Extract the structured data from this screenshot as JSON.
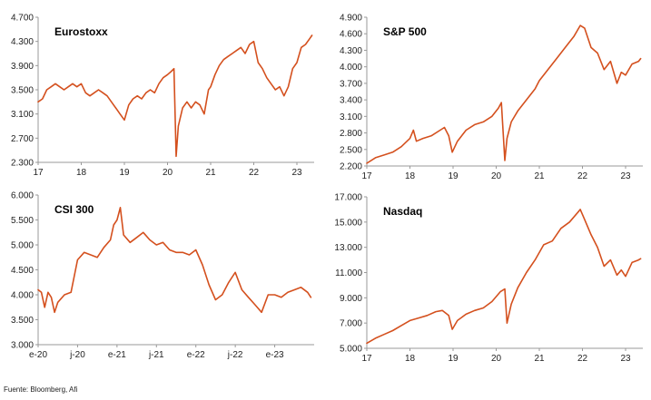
{
  "source_note": "Fuente: Bloomberg, Afi",
  "line_color": "#D4501E",
  "chart_data": [
    {
      "type": "line",
      "title": "Eurostoxx",
      "xlabel": "",
      "ylabel": "",
      "x_ticks": [
        17,
        18,
        19,
        20,
        21,
        22,
        23
      ],
      "x_tick_labels": [
        "17",
        "18",
        "19",
        "20",
        "21",
        "22",
        "23"
      ],
      "y_ticks": [
        2.3,
        2.7,
        3.1,
        3.5,
        3.9,
        4.3,
        4.7
      ],
      "y_tick_labels": [
        "2.300",
        "2.700",
        "3.100",
        "3.500",
        "3.900",
        "4.300",
        "4.700"
      ],
      "xlim": [
        17,
        23.4
      ],
      "ylim": [
        2.3,
        4.7
      ],
      "grid": false,
      "series": [
        {
          "x": [
            17.0,
            17.1,
            17.2,
            17.3,
            17.4,
            17.5,
            17.6,
            17.7,
            17.8,
            17.9,
            18.0,
            18.1,
            18.2,
            18.3,
            18.4,
            18.5,
            18.6,
            18.7,
            18.8,
            18.9,
            19.0,
            19.1,
            19.2,
            19.3,
            19.4,
            19.5,
            19.6,
            19.7,
            19.8,
            19.9,
            20.0,
            20.08,
            20.15,
            20.2,
            20.25,
            20.35,
            20.45,
            20.55,
            20.65,
            20.75,
            20.85,
            20.95,
            21.0,
            21.1,
            21.2,
            21.3,
            21.4,
            21.5,
            21.6,
            21.7,
            21.8,
            21.9,
            22.0,
            22.1,
            22.2,
            22.3,
            22.4,
            22.5,
            22.6,
            22.7,
            22.8,
            22.9,
            23.0,
            23.1,
            23.2,
            23.3,
            23.35
          ],
          "y": [
            3.3,
            3.35,
            3.5,
            3.55,
            3.6,
            3.55,
            3.5,
            3.55,
            3.6,
            3.55,
            3.6,
            3.45,
            3.4,
            3.45,
            3.5,
            3.45,
            3.4,
            3.3,
            3.2,
            3.1,
            3.0,
            3.25,
            3.35,
            3.4,
            3.35,
            3.45,
            3.5,
            3.45,
            3.6,
            3.7,
            3.75,
            3.8,
            3.85,
            2.4,
            2.9,
            3.2,
            3.3,
            3.2,
            3.3,
            3.25,
            3.1,
            3.5,
            3.55,
            3.75,
            3.9,
            4.0,
            4.05,
            4.1,
            4.15,
            4.2,
            4.1,
            4.25,
            4.3,
            3.95,
            3.85,
            3.7,
            3.6,
            3.5,
            3.55,
            3.4,
            3.55,
            3.85,
            3.95,
            4.2,
            4.25,
            4.35,
            4.4
          ]
        }
      ]
    },
    {
      "type": "line",
      "title": "S&P 500",
      "xlabel": "",
      "ylabel": "",
      "x_ticks": [
        17,
        18,
        19,
        20,
        21,
        22,
        23
      ],
      "x_tick_labels": [
        "17",
        "18",
        "19",
        "20",
        "21",
        "22",
        "23"
      ],
      "y_ticks": [
        2.2,
        2.5,
        2.8,
        3.1,
        3.4,
        3.7,
        4.0,
        4.3,
        4.6,
        4.9
      ],
      "y_tick_labels": [
        "2.200",
        "2.500",
        "2.800",
        "3.100",
        "3.400",
        "3.700",
        "4.000",
        "4.300",
        "4.600",
        "4.900"
      ],
      "xlim": [
        17,
        23.4
      ],
      "ylim": [
        2.2,
        4.9
      ],
      "grid": false,
      "series": [
        {
          "x": [
            17.0,
            17.2,
            17.4,
            17.6,
            17.8,
            18.0,
            18.08,
            18.15,
            18.3,
            18.5,
            18.7,
            18.8,
            18.9,
            18.98,
            19.1,
            19.3,
            19.5,
            19.7,
            19.9,
            20.05,
            20.12,
            20.2,
            20.25,
            20.35,
            20.5,
            20.7,
            20.9,
            21.0,
            21.2,
            21.4,
            21.6,
            21.8,
            21.95,
            22.05,
            22.2,
            22.35,
            22.5,
            22.65,
            22.8,
            22.9,
            23.0,
            23.15,
            23.3,
            23.35
          ],
          "y": [
            2.25,
            2.35,
            2.4,
            2.45,
            2.55,
            2.7,
            2.85,
            2.65,
            2.7,
            2.75,
            2.85,
            2.9,
            2.75,
            2.45,
            2.65,
            2.85,
            2.95,
            3.0,
            3.1,
            3.25,
            3.35,
            2.3,
            2.7,
            3.0,
            3.2,
            3.4,
            3.6,
            3.75,
            3.95,
            4.15,
            4.35,
            4.55,
            4.75,
            4.7,
            4.35,
            4.25,
            3.95,
            4.1,
            3.7,
            3.9,
            3.85,
            4.05,
            4.1,
            4.15
          ]
        }
      ]
    },
    {
      "type": "line",
      "title": "CSI 300",
      "xlabel": "",
      "ylabel": "",
      "x_ticks": [
        0,
        6,
        12,
        18,
        24,
        30,
        36
      ],
      "x_tick_labels": [
        "e-20",
        "j-20",
        "e-21",
        "j-21",
        "e-22",
        "j-22",
        "e-23"
      ],
      "y_ticks": [
        3.0,
        3.5,
        4.0,
        4.5,
        5.0,
        5.5,
        6.0
      ],
      "y_tick_labels": [
        "3.000",
        "3.500",
        "4.000",
        "4.500",
        "5.000",
        "5.500",
        "6.000"
      ],
      "xlim": [
        0,
        42
      ],
      "ylim": [
        3.0,
        6.0
      ],
      "grid": false,
      "series": [
        {
          "x": [
            0,
            0.5,
            1,
            1.5,
            2,
            2.5,
            3,
            4,
            5,
            6,
            7,
            8,
            9,
            10,
            11,
            11.5,
            12,
            12.5,
            13,
            14,
            15,
            16,
            17,
            18,
            19,
            20,
            21,
            22,
            23,
            24,
            25,
            26,
            27,
            28,
            29,
            30,
            31,
            32,
            33,
            34,
            35,
            36,
            37,
            38,
            39,
            40,
            41,
            41.5
          ],
          "y": [
            4.1,
            4.05,
            3.75,
            4.05,
            3.95,
            3.65,
            3.85,
            4.0,
            4.05,
            4.7,
            4.85,
            4.8,
            4.75,
            4.95,
            5.1,
            5.4,
            5.5,
            5.75,
            5.2,
            5.05,
            5.15,
            5.25,
            5.1,
            5.0,
            5.05,
            4.9,
            4.85,
            4.85,
            4.8,
            4.9,
            4.6,
            4.2,
            3.9,
            4.0,
            4.25,
            4.45,
            4.1,
            3.95,
            3.8,
            3.65,
            4.0,
            4.0,
            3.95,
            4.05,
            4.1,
            4.15,
            4.05,
            3.95
          ]
        }
      ]
    },
    {
      "type": "line",
      "title": "Nasdaq",
      "xlabel": "",
      "ylabel": "",
      "x_ticks": [
        17,
        18,
        19,
        20,
        21,
        22,
        23
      ],
      "x_tick_labels": [
        "17",
        "18",
        "19",
        "20",
        "21",
        "22",
        "23"
      ],
      "y_ticks": [
        5.0,
        7.0,
        9.0,
        11.0,
        13.0,
        15.0,
        17.0
      ],
      "y_tick_labels": [
        "5.000",
        "7.000",
        "9.000",
        "11.000",
        "13.000",
        "15.000",
        "17.000"
      ],
      "xlim": [
        17,
        23.4
      ],
      "ylim": [
        5.0,
        17.0
      ],
      "grid": false,
      "series": [
        {
          "x": [
            17.0,
            17.2,
            17.4,
            17.6,
            17.8,
            18.0,
            18.2,
            18.4,
            18.6,
            18.75,
            18.9,
            18.98,
            19.1,
            19.3,
            19.5,
            19.7,
            19.9,
            20.1,
            20.2,
            20.25,
            20.35,
            20.5,
            20.7,
            20.9,
            21.1,
            21.3,
            21.5,
            21.7,
            21.9,
            21.95,
            22.05,
            22.2,
            22.35,
            22.5,
            22.65,
            22.8,
            22.9,
            23.0,
            23.15,
            23.3,
            23.35
          ],
          "y": [
            5.4,
            5.8,
            6.1,
            6.4,
            6.8,
            7.2,
            7.4,
            7.6,
            7.9,
            8.0,
            7.6,
            6.5,
            7.2,
            7.7,
            8.0,
            8.2,
            8.7,
            9.5,
            9.7,
            7.0,
            8.5,
            9.8,
            11.0,
            12.0,
            13.2,
            13.5,
            14.5,
            15.0,
            15.8,
            16.0,
            15.2,
            14.0,
            13.0,
            11.5,
            12.0,
            10.8,
            11.2,
            10.7,
            11.8,
            12.0,
            12.1
          ]
        }
      ]
    }
  ]
}
